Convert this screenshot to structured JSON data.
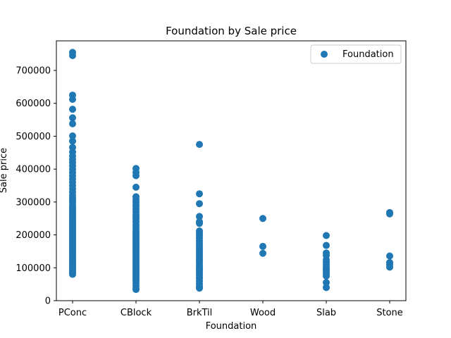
{
  "chart_data": {
    "type": "scatter",
    "title": "Foundation by Sale price",
    "xlabel": "Foundation",
    "ylabel": "Sale price",
    "categories": [
      "PConc",
      "CBlock",
      "BrkTil",
      "Wood",
      "Slab",
      "Stone"
    ],
    "ylim": [
      0,
      790000
    ],
    "yticks": [
      0,
      100000,
      200000,
      300000,
      400000,
      500000,
      600000,
      700000
    ],
    "ytick_labels": [
      "0",
      "100000",
      "200000",
      "300000",
      "400000",
      "500000",
      "600000",
      "700000"
    ],
    "grid": false,
    "legend": {
      "position": "top-right",
      "entries": [
        "Foundation"
      ]
    },
    "series": [
      {
        "name": "Foundation",
        "color": "#1f77b4",
        "points": {
          "PConc": [
            755000,
            745000,
            625000,
            612000,
            582000,
            556000,
            538000,
            501000,
            485000,
            466000,
            452000,
            440000,
            430000,
            420000,
            410000,
            400000,
            390000,
            380000,
            370000,
            360000,
            350000,
            340000,
            330000,
            320000,
            312000,
            305000,
            298000,
            290000,
            284000,
            278000,
            272000,
            266000,
            260000,
            255000,
            250000,
            245000,
            240000,
            235000,
            230000,
            225000,
            220000,
            215000,
            210000,
            205000,
            200000,
            195000,
            190000,
            185000,
            180000,
            175000,
            170000,
            165000,
            160000,
            155000,
            150000,
            145000,
            140000,
            135000,
            130000,
            125000,
            120000,
            115000,
            110000,
            105000,
            100000,
            95000,
            90000,
            85000,
            80000
          ],
          "CBlock": [
            402000,
            390000,
            380000,
            345000,
            316000,
            308000,
            300000,
            292000,
            285000,
            278000,
            270000,
            262000,
            255000,
            248000,
            240000,
            232000,
            225000,
            218000,
            210000,
            204000,
            198000,
            192000,
            186000,
            180000,
            174000,
            168000,
            162000,
            156000,
            150000,
            144000,
            138000,
            132000,
            126000,
            120000,
            114000,
            108000,
            102000,
            96000,
            90000,
            84000,
            78000,
            72000,
            66000,
            60000,
            52000,
            45000,
            37000,
            34000
          ],
          "BrkTil": [
            475000,
            325000,
            295000,
            256000,
            240000,
            235000,
            212000,
            205000,
            198000,
            190000,
            182000,
            175000,
            168000,
            160000,
            153000,
            146000,
            140000,
            133000,
            126000,
            120000,
            113000,
            106000,
            100000,
            94000,
            88000,
            82000,
            75000,
            68000,
            60000,
            52000,
            44000,
            38000
          ],
          "Wood": [
            250000,
            165000,
            144000
          ],
          "Slab": [
            198000,
            168000,
            145000,
            138000,
            125000,
            118000,
            110000,
            102000,
            95000,
            88000,
            82000,
            75000,
            55000,
            40000
          ],
          "Stone": [
            268000,
            264000,
            136000,
            116000,
            110000,
            102000
          ]
        }
      }
    ]
  }
}
